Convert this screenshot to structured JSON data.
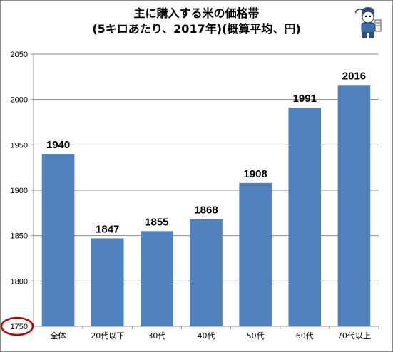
{
  "chart_data": {
    "type": "bar",
    "title": "主に購入する米の価格帯",
    "subtitle": "(5キロあたり、2017年)(概算平均、円)",
    "categories": [
      "全体",
      "20代以下",
      "30代",
      "40代",
      "50代",
      "60代",
      "70代以上"
    ],
    "values": [
      1940,
      1847,
      1855,
      1868,
      1908,
      1991,
      2016
    ],
    "data_labels": [
      "1940",
      "1847",
      "1855",
      "1868",
      "1908",
      "1991",
      "2016"
    ],
    "ylim": [
      1750,
      2050
    ],
    "yticks": [
      1750,
      1800,
      1850,
      1900,
      1950,
      2000,
      2050
    ],
    "ytick_labels": [
      "1750",
      "1800",
      "1850",
      "1900",
      "1950",
      "2000",
      "2050"
    ],
    "grid": true,
    "bar_color": "#4f81bd",
    "grid_color": "#8c8c8c",
    "highlight": {
      "target": "1750",
      "shape": "ellipse",
      "color": "#c00000"
    }
  },
  "mascot_icon": "mascot-logo-icon"
}
